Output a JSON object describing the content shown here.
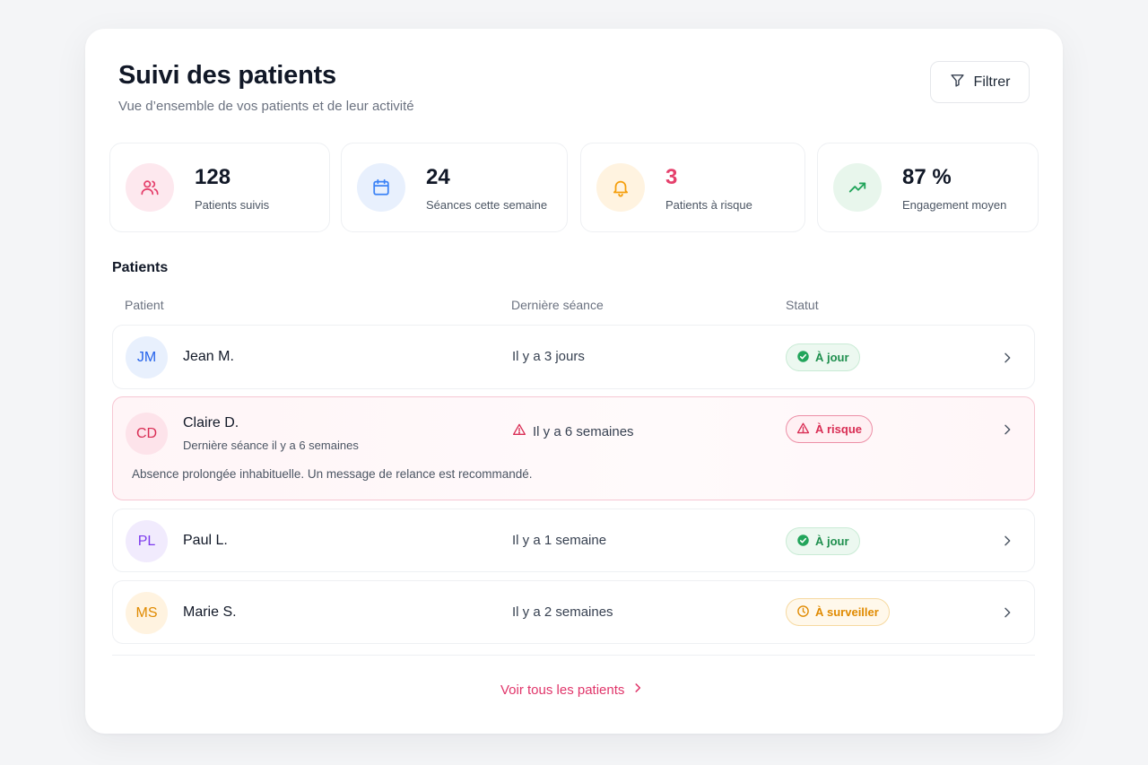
{
  "header": {
    "title": "Suivi des patients",
    "subtitle": "Vue d’ensemble de vos patients et de leur activité",
    "filter_label": "Filtrer"
  },
  "stats": [
    {
      "value": "128",
      "label": "Patients suivis",
      "icon": "users-icon",
      "color": "#e5406c",
      "bg": "#fde8ee"
    },
    {
      "value": "24",
      "label": "Séances cette semaine",
      "icon": "calendar-icon",
      "color": "#3b82f6",
      "bg": "#e8f0fd"
    },
    {
      "value": "3",
      "label": "Patients à risque",
      "icon": "bell-icon",
      "color": "#f59e0b",
      "bg": "#fff3e0"
    },
    {
      "value": "87 %",
      "label": "Engagement moyen",
      "icon": "trending-up-icon",
      "color": "#22a55b",
      "bg": "#e8f6ec"
    }
  ],
  "patients_section": {
    "title": "Patients",
    "columns": [
      "Patient",
      "Dernière séance",
      "Statut"
    ]
  },
  "patients": [
    {
      "initials": "JM",
      "name": "Jean M.",
      "last_session": "Il y a 3 jours",
      "status": "À jour",
      "status_type": "ok",
      "avatar_color": "#2563eb",
      "avatar_bg": "#e8f0fd"
    },
    {
      "initials": "CD",
      "name": "Claire D.",
      "sub": "Dernière séance il y a 6 semaines",
      "last_session": "Il y a 6 semaines",
      "status": "À risque",
      "status_type": "risk",
      "avatar_color": "#d92d54",
      "avatar_bg": "#fde3ea",
      "alert": "Absence prolongée inhabituelle. Un message de relance est recommandé."
    },
    {
      "initials": "PL",
      "name": "Paul L.",
      "last_session": "Il y a 1 semaine",
      "status": "À jour",
      "status_type": "ok",
      "avatar_color": "#7c3aed",
      "avatar_bg": "#f1ebfd"
    },
    {
      "initials": "MS",
      "name": "Marie S.",
      "last_session": "Il y a 2 semaines",
      "status": "À surveiller",
      "status_type": "watch",
      "avatar_color": "#e08a00",
      "avatar_bg": "#fff3e0"
    }
  ],
  "footer": {
    "see_all": "Voir tous les patients"
  },
  "colors": {
    "accent": "#e0356a",
    "ok": "#1f8f4e",
    "risk": "#d92d54",
    "watch": "#e08a00"
  }
}
